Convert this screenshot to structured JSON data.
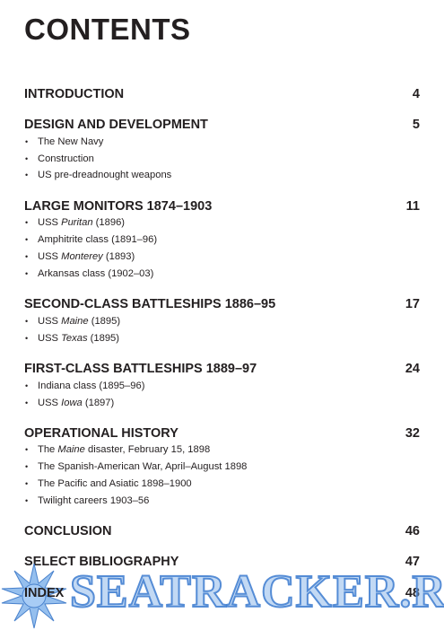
{
  "title": "CONTENTS",
  "sections": [
    {
      "label": "INTRODUCTION",
      "page": "4",
      "items": []
    },
    {
      "label": "DESIGN AND DEVELOPMENT",
      "page": "5",
      "items": [
        {
          "pre": "The New Navy",
          "it": "",
          "post": ""
        },
        {
          "pre": "Construction",
          "it": "",
          "post": ""
        },
        {
          "pre": "US pre-dreadnought weapons",
          "it": "",
          "post": ""
        }
      ]
    },
    {
      "label": "LARGE MONITORS 1874–1903",
      "page": "11",
      "items": [
        {
          "pre": "USS ",
          "it": "Puritan",
          "post": " (1896)"
        },
        {
          "pre": "Amphitrite class (1891–96)",
          "it": "",
          "post": ""
        },
        {
          "pre": "USS ",
          "it": "Monterey",
          "post": " (1893)"
        },
        {
          "pre": "Arkansas class (1902–03)",
          "it": "",
          "post": ""
        }
      ]
    },
    {
      "label": "SECOND-CLASS BATTLESHIPS 1886–95",
      "page": "17",
      "items": [
        {
          "pre": "USS ",
          "it": "Maine",
          "post": " (1895)"
        },
        {
          "pre": "USS ",
          "it": "Texas",
          "post": " (1895)"
        }
      ]
    },
    {
      "label": "FIRST-CLASS BATTLESHIPS 1889–97",
      "page": "24",
      "items": [
        {
          "pre": "Indiana class (1895–96)",
          "it": "",
          "post": ""
        },
        {
          "pre": "USS ",
          "it": "Iowa",
          "post": " (1897)"
        }
      ]
    },
    {
      "label": "OPERATIONAL HISTORY",
      "page": "32",
      "items": [
        {
          "pre": "The ",
          "it": "Maine",
          "post": " disaster, February 15, 1898"
        },
        {
          "pre": "The Spanish-American War, April–August 1898",
          "it": "",
          "post": ""
        },
        {
          "pre": "The Pacific and Asiatic 1898–1900",
          "it": "",
          "post": ""
        },
        {
          "pre": "Twilight careers 1903–56",
          "it": "",
          "post": ""
        }
      ]
    },
    {
      "label": "CONCLUSION",
      "page": "46",
      "items": []
    },
    {
      "label": "SELECT BIBLIOGRAPHY",
      "page": "47",
      "items": []
    },
    {
      "label": "INDEX",
      "page": "48",
      "items": []
    }
  ],
  "bullet": "•",
  "watermark": {
    "text": "SEATRACKER.RU",
    "color": "#4682d2"
  }
}
